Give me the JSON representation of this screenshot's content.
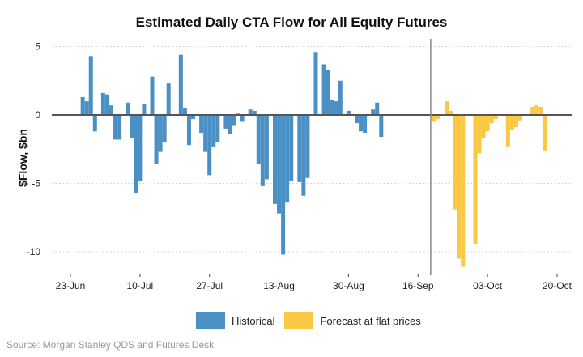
{
  "chart_data": {
    "type": "bar",
    "title": "Estimated Daily CTA Flow for All Equity Futures",
    "ylabel": "$Flow, $bn",
    "xlabel": "",
    "ylim": [
      -11.5,
      5.5
    ],
    "y_ticks": [
      5,
      0,
      -5,
      -10
    ],
    "x_tick_labels": [
      "23-Jun",
      "10-Jul",
      "27-Jul",
      "13-Aug",
      "30-Aug",
      "16-Sep",
      "03-Oct",
      "20-Oct"
    ],
    "x_tick_days": [
      0,
      17,
      34,
      51,
      68,
      85,
      102,
      119
    ],
    "divider_day": 88.1,
    "grid": "horizontal dotted",
    "legend_position": "bottom",
    "colors": {
      "historical": "#4A90C4",
      "forecast": "#F9C845",
      "zero_line": "#555555",
      "divider": "#888888",
      "grid": "#cccccc"
    },
    "series": [
      {
        "name": "Historical",
        "color": "#4A90C4",
        "points": [
          [
            3,
            1.3
          ],
          [
            4,
            1.0
          ],
          [
            5,
            4.3
          ],
          [
            6,
            -1.2
          ],
          [
            8,
            1.6
          ],
          [
            9,
            1.5
          ],
          [
            10,
            0.7
          ],
          [
            11,
            -1.8
          ],
          [
            12,
            -1.8
          ],
          [
            14,
            0.9
          ],
          [
            15,
            -1.7
          ],
          [
            16,
            -5.7
          ],
          [
            17,
            -4.8
          ],
          [
            18,
            0.8
          ],
          [
            20,
            2.8
          ],
          [
            21,
            -3.6
          ],
          [
            22,
            -2.7
          ],
          [
            23,
            -2.0
          ],
          [
            24,
            2.3
          ],
          [
            26,
            0.0
          ],
          [
            27,
            4.4
          ],
          [
            28,
            0.5
          ],
          [
            29,
            -2.2
          ],
          [
            30,
            -0.3
          ],
          [
            32,
            -1.3
          ],
          [
            33,
            -2.7
          ],
          [
            34,
            -4.4
          ],
          [
            35,
            -2.3
          ],
          [
            36,
            -2.0
          ],
          [
            38,
            -1.0
          ],
          [
            39,
            -1.4
          ],
          [
            40,
            -0.8
          ],
          [
            41,
            0.1
          ],
          [
            42,
            -0.5
          ],
          [
            44,
            0.4
          ],
          [
            45,
            0.3
          ],
          [
            46,
            -3.6
          ],
          [
            47,
            -5.2
          ],
          [
            48,
            -4.7
          ],
          [
            50,
            -6.5
          ],
          [
            51,
            -7.2
          ],
          [
            52,
            -10.2
          ],
          [
            53,
            -6.4
          ],
          [
            54,
            -4.8
          ],
          [
            56,
            -4.9
          ],
          [
            57,
            -5.9
          ],
          [
            58,
            -4.6
          ],
          [
            60,
            4.6
          ],
          [
            62,
            3.7
          ],
          [
            63,
            3.3
          ],
          [
            64,
            1.1
          ],
          [
            65,
            1.0
          ],
          [
            66,
            2.5
          ],
          [
            68,
            0.3
          ],
          [
            70,
            -0.6
          ],
          [
            71,
            -1.2
          ],
          [
            72,
            -1.3
          ],
          [
            74,
            0.4
          ],
          [
            75,
            0.9
          ],
          [
            76,
            -1.6
          ]
        ]
      },
      {
        "name": "Forecast at flat prices",
        "color": "#F9C845",
        "points": [
          [
            89,
            -0.5
          ],
          [
            90,
            -0.3
          ],
          [
            92,
            1.0
          ],
          [
            93,
            0.3
          ],
          [
            94,
            -6.9
          ],
          [
            95,
            -10.5
          ],
          [
            96,
            -11.1
          ],
          [
            99,
            -9.4
          ],
          [
            100,
            -2.8
          ],
          [
            101,
            -1.7
          ],
          [
            102,
            -1.2
          ],
          [
            103,
            -0.6
          ],
          [
            104,
            -0.3
          ],
          [
            107,
            -2.3
          ],
          [
            108,
            -1.1
          ],
          [
            109,
            -0.9
          ],
          [
            110,
            -0.4
          ],
          [
            113,
            0.6
          ],
          [
            114,
            0.7
          ],
          [
            115,
            0.6
          ],
          [
            116,
            -2.6
          ]
        ]
      }
    ]
  },
  "legend": {
    "historical_label": "Historical",
    "forecast_label": "Forecast at flat prices"
  },
  "source": "Source: Morgan Stanley QDS and Futures Desk"
}
